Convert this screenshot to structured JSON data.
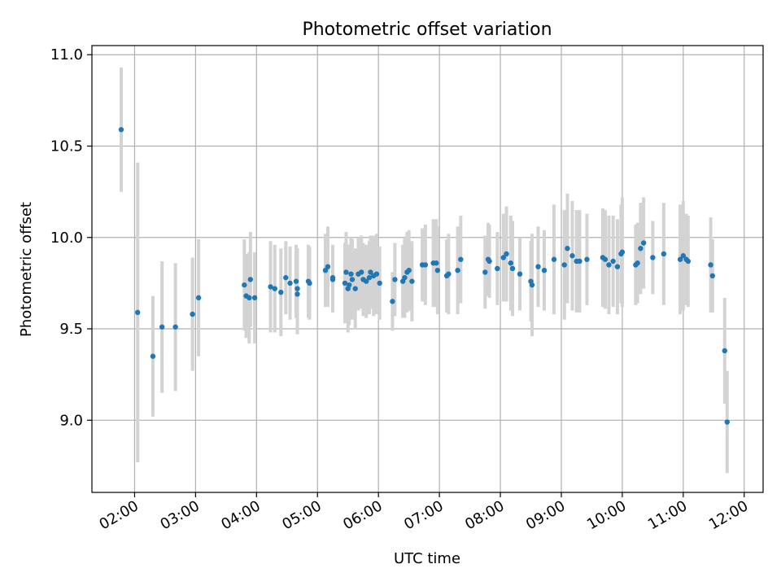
{
  "chart_data": {
    "type": "scatter",
    "title": "Photometric offset variation",
    "xlabel": "UTC time",
    "ylabel": "Photometric offset",
    "x_unit": "hours (UTC)",
    "xlim": [
      1.3,
      12.31
    ],
    "ylim": [
      8.605,
      11.05
    ],
    "x_ticks": [
      {
        "value": 2,
        "label": "02:00"
      },
      {
        "value": 3,
        "label": "03:00"
      },
      {
        "value": 4,
        "label": "04:00"
      },
      {
        "value": 5,
        "label": "05:00"
      },
      {
        "value": 6,
        "label": "06:00"
      },
      {
        "value": 7,
        "label": "07:00"
      },
      {
        "value": 8,
        "label": "08:00"
      },
      {
        "value": 9,
        "label": "09:00"
      },
      {
        "value": 10,
        "label": "10:00"
      },
      {
        "value": 11,
        "label": "11:00"
      },
      {
        "value": 12,
        "label": "12:00"
      }
    ],
    "y_ticks": [
      {
        "value": 9.0,
        "label": "9.0"
      },
      {
        "value": 9.5,
        "label": "9.5"
      },
      {
        "value": 10.0,
        "label": "10.0"
      },
      {
        "value": 10.5,
        "label": "10.5"
      },
      {
        "value": 11.0,
        "label": "11.0"
      }
    ],
    "grid": true,
    "colors": {
      "marker": "#1f77b4",
      "errorbar": "#d3d3d3",
      "grid": "#b0b0b0"
    },
    "points": [
      [
        1.78,
        10.59,
        0.34
      ],
      [
        2.05,
        9.59,
        0.82
      ],
      [
        2.3,
        9.35,
        0.33
      ],
      [
        2.45,
        9.51,
        0.36
      ],
      [
        2.67,
        9.51,
        0.35
      ],
      [
        2.95,
        9.58,
        0.31
      ],
      [
        3.05,
        9.67,
        0.32
      ],
      [
        3.8,
        9.74,
        0.25
      ],
      [
        3.83,
        9.68,
        0.23
      ],
      [
        3.88,
        9.67,
        0.25
      ],
      [
        3.9,
        9.77,
        0.26
      ],
      [
        3.97,
        9.67,
        0.25
      ],
      [
        4.23,
        9.73,
        0.25
      ],
      [
        4.3,
        9.72,
        0.24
      ],
      [
        4.4,
        9.7,
        0.24
      ],
      [
        4.48,
        9.78,
        0.2
      ],
      [
        4.55,
        9.75,
        0.2
      ],
      [
        4.65,
        9.76,
        0.2
      ],
      [
        4.67,
        9.72,
        0.22
      ],
      [
        4.67,
        9.69,
        0.22
      ],
      [
        4.85,
        9.76,
        0.2
      ],
      [
        4.87,
        9.75,
        0.2
      ],
      [
        5.13,
        9.82,
        0.2
      ],
      [
        5.17,
        9.84,
        0.22
      ],
      [
        5.25,
        9.78,
        0.18
      ],
      [
        5.25,
        9.77,
        0.18
      ],
      [
        5.45,
        9.75,
        0.22
      ],
      [
        5.47,
        9.81,
        0.22
      ],
      [
        5.5,
        9.72,
        0.24
      ],
      [
        5.52,
        9.74,
        0.22
      ],
      [
        5.55,
        9.8,
        0.2
      ],
      [
        5.57,
        9.77,
        0.22
      ],
      [
        5.62,
        9.72,
        0.22
      ],
      [
        5.67,
        9.8,
        0.2
      ],
      [
        5.72,
        9.81,
        0.2
      ],
      [
        5.75,
        9.77,
        0.2
      ],
      [
        5.8,
        9.76,
        0.2
      ],
      [
        5.85,
        9.78,
        0.2
      ],
      [
        5.87,
        9.81,
        0.2
      ],
      [
        5.92,
        9.79,
        0.22
      ],
      [
        5.97,
        9.8,
        0.22
      ],
      [
        6.02,
        9.75,
        0.2
      ],
      [
        6.23,
        9.65,
        0.16
      ],
      [
        6.27,
        9.77,
        0.2
      ],
      [
        6.4,
        9.76,
        0.2
      ],
      [
        6.43,
        9.78,
        0.22
      ],
      [
        6.47,
        9.81,
        0.22
      ],
      [
        6.5,
        9.82,
        0.22
      ],
      [
        6.55,
        9.76,
        0.22
      ],
      [
        6.72,
        9.85,
        0.2
      ],
      [
        6.77,
        9.85,
        0.22
      ],
      [
        6.9,
        9.86,
        0.24
      ],
      [
        6.95,
        9.86,
        0.24
      ],
      [
        6.97,
        9.82,
        0.24
      ],
      [
        7.12,
        9.79,
        0.2
      ],
      [
        7.15,
        9.8,
        0.22
      ],
      [
        7.3,
        9.82,
        0.24
      ],
      [
        7.35,
        9.88,
        0.24
      ],
      [
        7.75,
        9.81,
        0.2
      ],
      [
        7.8,
        9.88,
        0.2
      ],
      [
        7.82,
        9.87,
        0.2
      ],
      [
        7.95,
        9.83,
        0.2
      ],
      [
        8.05,
        9.89,
        0.24
      ],
      [
        8.1,
        9.91,
        0.26
      ],
      [
        8.17,
        9.86,
        0.26
      ],
      [
        8.2,
        9.83,
        0.26
      ],
      [
        8.32,
        9.8,
        0.2
      ],
      [
        8.5,
        9.76,
        0.22
      ],
      [
        8.52,
        9.74,
        0.28
      ],
      [
        8.62,
        9.84,
        0.22
      ],
      [
        8.72,
        9.82,
        0.22
      ],
      [
        8.88,
        9.88,
        0.3
      ],
      [
        9.05,
        9.85,
        0.3
      ],
      [
        9.1,
        9.94,
        0.3
      ],
      [
        9.18,
        9.9,
        0.3
      ],
      [
        9.25,
        9.87,
        0.28
      ],
      [
        9.3,
        9.87,
        0.28
      ],
      [
        9.42,
        9.88,
        0.25
      ],
      [
        9.68,
        9.89,
        0.27
      ],
      [
        9.72,
        9.88,
        0.27
      ],
      [
        9.78,
        9.85,
        0.27
      ],
      [
        9.85,
        9.87,
        0.25
      ],
      [
        9.92,
        9.84,
        0.26
      ],
      [
        9.98,
        9.91,
        0.27
      ],
      [
        10.0,
        9.92,
        0.3
      ],
      [
        10.22,
        9.85,
        0.22
      ],
      [
        10.25,
        9.86,
        0.22
      ],
      [
        10.3,
        9.94,
        0.25
      ],
      [
        10.35,
        9.97,
        0.25
      ],
      [
        10.5,
        9.89,
        0.2
      ],
      [
        10.68,
        9.91,
        0.28
      ],
      [
        10.95,
        9.88,
        0.3
      ],
      [
        11.0,
        9.9,
        0.3
      ],
      [
        11.05,
        9.88,
        0.25
      ],
      [
        11.08,
        9.87,
        0.25
      ],
      [
        11.45,
        9.85,
        0.26
      ],
      [
        11.48,
        9.79,
        0.2
      ],
      [
        11.68,
        9.38,
        0.29
      ],
      [
        11.72,
        8.99,
        0.28
      ]
    ]
  }
}
